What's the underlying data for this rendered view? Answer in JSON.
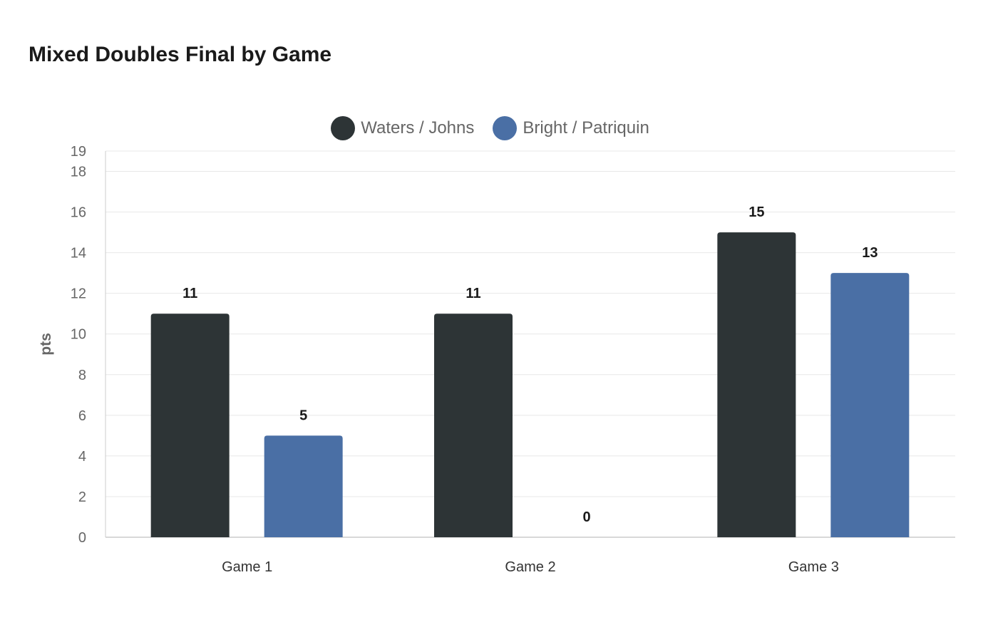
{
  "chart_data": {
    "type": "bar",
    "title": "Mixed Doubles Final by Game",
    "xlabel": "",
    "ylabel": "pts",
    "categories": [
      "Game 1",
      "Game 2",
      "Game 3"
    ],
    "series": [
      {
        "name": "Waters / Johns",
        "values": [
          11,
          11,
          15
        ],
        "color": "#2d3436"
      },
      {
        "name": "Bright / Patriquin",
        "values": [
          5,
          0,
          13
        ],
        "color": "#4a6fa5"
      }
    ],
    "ylim": [
      0,
      19
    ],
    "yticks": [
      0,
      2,
      4,
      6,
      8,
      10,
      12,
      14,
      16,
      18,
      19
    ],
    "grid": true,
    "legend": "top-center",
    "data_labels": true
  }
}
